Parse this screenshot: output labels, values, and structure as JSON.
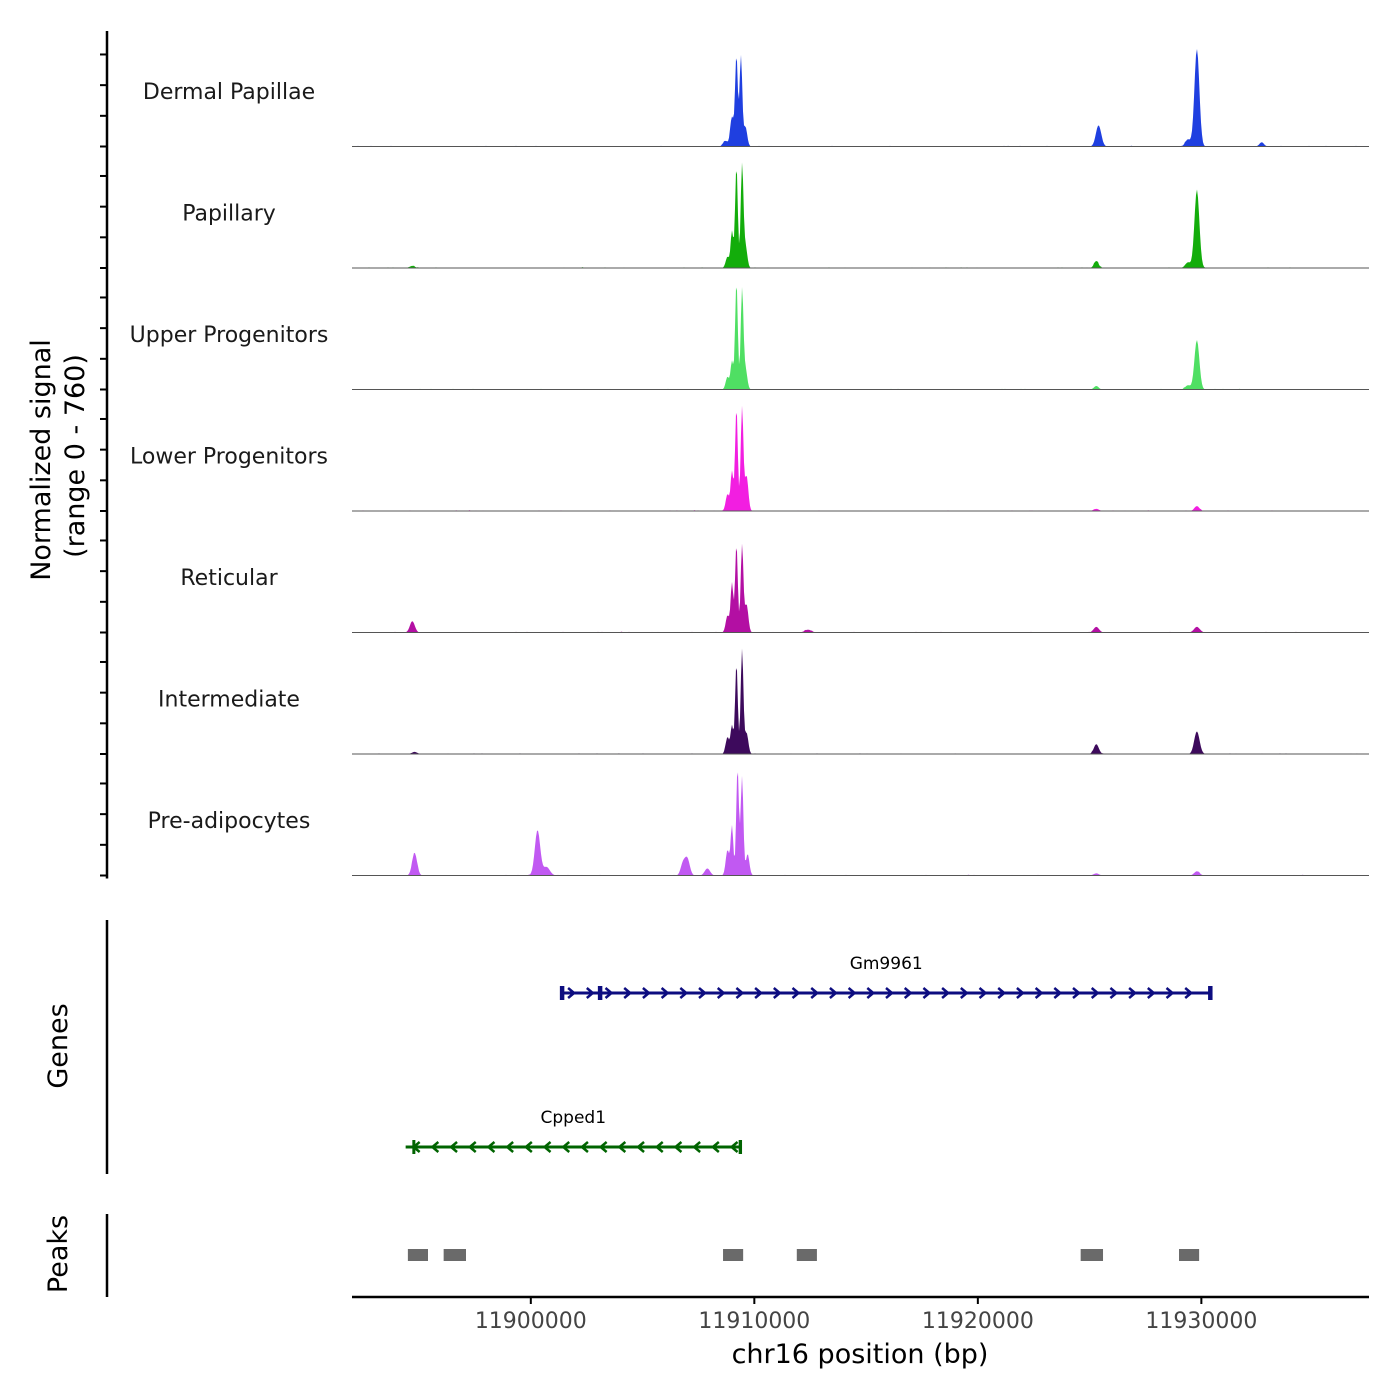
{
  "chart_data": {
    "type": "area",
    "title": "",
    "chromosome": "chr16",
    "xlabel": "chr16 position (bp)",
    "xlim": [
      11892000,
      11937500
    ],
    "xticks": [
      11900000,
      11910000,
      11920000,
      11930000
    ],
    "xtick_labels": [
      "11900000",
      "11910000",
      "11920000",
      "11930000"
    ],
    "ylabel_line1": "Normalized signal",
    "ylabel_line2": "(range 0 - 760)",
    "ylim": [
      0,
      760
    ],
    "tracks": [
      {
        "name": "Dermal Papillae",
        "color": "#1f3fe0",
        "peaks": [
          {
            "pos": 11909000,
            "height": 210,
            "width": 80
          },
          {
            "pos": 11909200,
            "height": 640,
            "width": 60
          },
          {
            "pos": 11909400,
            "height": 640,
            "width": 60
          },
          {
            "pos": 11909600,
            "height": 140,
            "width": 80
          },
          {
            "pos": 11925400,
            "height": 150,
            "width": 120
          },
          {
            "pos": 11929800,
            "height": 690,
            "width": 110
          },
          {
            "pos": 11929400,
            "height": 50,
            "width": 120
          },
          {
            "pos": 11932700,
            "height": 30,
            "width": 100
          },
          {
            "pos": 11908700,
            "height": 40,
            "width": 100
          }
        ]
      },
      {
        "name": "Papillary",
        "color": "#13ad0b",
        "peaks": [
          {
            "pos": 11908800,
            "height": 80,
            "width": 80
          },
          {
            "pos": 11909000,
            "height": 260,
            "width": 60
          },
          {
            "pos": 11909200,
            "height": 720,
            "width": 60
          },
          {
            "pos": 11909450,
            "height": 720,
            "width": 60
          },
          {
            "pos": 11909600,
            "height": 160,
            "width": 80
          },
          {
            "pos": 11925300,
            "height": 50,
            "width": 100
          },
          {
            "pos": 11929800,
            "height": 550,
            "width": 110
          },
          {
            "pos": 11929400,
            "height": 40,
            "width": 120
          },
          {
            "pos": 11894700,
            "height": 15,
            "width": 120
          }
        ]
      },
      {
        "name": "Upper Progenitors",
        "color": "#4fdf63",
        "peaks": [
          {
            "pos": 11908800,
            "height": 90,
            "width": 80
          },
          {
            "pos": 11909000,
            "height": 200,
            "width": 60
          },
          {
            "pos": 11909200,
            "height": 760,
            "width": 60
          },
          {
            "pos": 11909450,
            "height": 700,
            "width": 60
          },
          {
            "pos": 11909600,
            "height": 150,
            "width": 80
          },
          {
            "pos": 11925300,
            "height": 25,
            "width": 100
          },
          {
            "pos": 11929800,
            "height": 350,
            "width": 110
          },
          {
            "pos": 11929400,
            "height": 30,
            "width": 120
          }
        ]
      },
      {
        "name": "Lower Progenitors",
        "color": "#f21ee1",
        "peaks": [
          {
            "pos": 11908800,
            "height": 120,
            "width": 80
          },
          {
            "pos": 11909000,
            "height": 280,
            "width": 60
          },
          {
            "pos": 11909200,
            "height": 730,
            "width": 60
          },
          {
            "pos": 11909450,
            "height": 730,
            "width": 60
          },
          {
            "pos": 11909650,
            "height": 250,
            "width": 80
          },
          {
            "pos": 11925300,
            "height": 15,
            "width": 120
          },
          {
            "pos": 11929800,
            "height": 35,
            "width": 110
          }
        ]
      },
      {
        "name": "Reticular",
        "color": "#b30fa3",
        "peaks": [
          {
            "pos": 11894700,
            "height": 80,
            "width": 110
          },
          {
            "pos": 11908800,
            "height": 120,
            "width": 80
          },
          {
            "pos": 11909000,
            "height": 350,
            "width": 60
          },
          {
            "pos": 11909200,
            "height": 620,
            "width": 60
          },
          {
            "pos": 11909450,
            "height": 620,
            "width": 60
          },
          {
            "pos": 11909650,
            "height": 200,
            "width": 80
          },
          {
            "pos": 11912400,
            "height": 20,
            "width": 150
          },
          {
            "pos": 11925300,
            "height": 40,
            "width": 120
          },
          {
            "pos": 11929800,
            "height": 40,
            "width": 130
          }
        ]
      },
      {
        "name": "Intermediate",
        "color": "#3d0a5c",
        "peaks": [
          {
            "pos": 11908800,
            "height": 120,
            "width": 80
          },
          {
            "pos": 11909000,
            "height": 200,
            "width": 60
          },
          {
            "pos": 11909200,
            "height": 640,
            "width": 60
          },
          {
            "pos": 11909450,
            "height": 740,
            "width": 60
          },
          {
            "pos": 11909650,
            "height": 150,
            "width": 80
          },
          {
            "pos": 11925300,
            "height": 70,
            "width": 110
          },
          {
            "pos": 11929800,
            "height": 160,
            "width": 120
          },
          {
            "pos": 11894800,
            "height": 15,
            "width": 120
          }
        ]
      },
      {
        "name": "Pre-adipocytes",
        "color": "#c159f2",
        "peaks": [
          {
            "pos": 11894800,
            "height": 160,
            "width": 110
          },
          {
            "pos": 11900300,
            "height": 320,
            "width": 120
          },
          {
            "pos": 11900700,
            "height": 60,
            "width": 150
          },
          {
            "pos": 11907000,
            "height": 120,
            "width": 110
          },
          {
            "pos": 11906800,
            "height": 80,
            "width": 100
          },
          {
            "pos": 11907900,
            "height": 50,
            "width": 120
          },
          {
            "pos": 11908800,
            "height": 180,
            "width": 80
          },
          {
            "pos": 11909000,
            "height": 350,
            "width": 60
          },
          {
            "pos": 11909250,
            "height": 760,
            "width": 60
          },
          {
            "pos": 11909450,
            "height": 700,
            "width": 60
          },
          {
            "pos": 11909700,
            "height": 150,
            "width": 80
          },
          {
            "pos": 11929800,
            "height": 30,
            "width": 120
          },
          {
            "pos": 11925300,
            "height": 15,
            "width": 120
          }
        ]
      }
    ],
    "genes": [
      {
        "name": "Gm9961",
        "start": 11901400,
        "end": 11930400,
        "strand": "+",
        "color": "#0d0d80",
        "exons": [
          [
            11901300,
            11901500
          ],
          [
            11903000,
            11903200
          ],
          [
            11930300,
            11930500
          ]
        ]
      },
      {
        "name": "Cpped1",
        "start": 11894400,
        "end": 11909400,
        "strand": "-",
        "color": "#006400",
        "exons": [
          [
            11894700,
            11894750
          ],
          [
            11909300,
            11909450
          ]
        ]
      }
    ],
    "genes_label": "Genes",
    "peaks_label": "Peaks",
    "peak_regions": [
      [
        11894500,
        11895400
      ],
      [
        11896100,
        11897100
      ],
      [
        11908600,
        11909500
      ],
      [
        11911900,
        11912800
      ],
      [
        11924600,
        11925600
      ],
      [
        11929000,
        11929900
      ]
    ]
  }
}
